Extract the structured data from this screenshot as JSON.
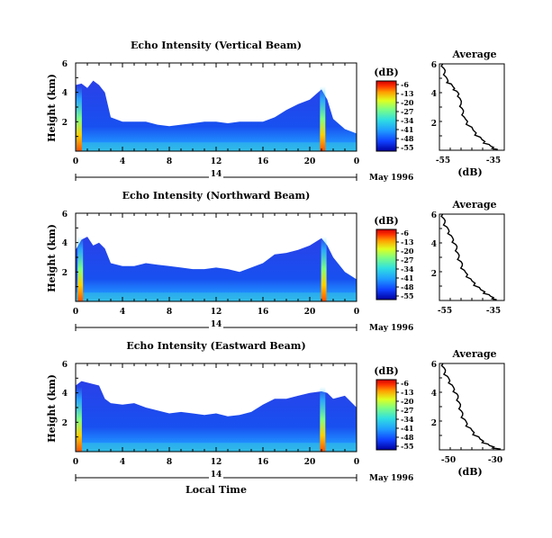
{
  "panels": [
    {
      "title": "Echo Intensity (Vertical Beam)",
      "ylabel": "Height (km)",
      "yticks": [
        "6",
        "4",
        "2"
      ],
      "xticks": [
        "0",
        "4",
        "8",
        "12",
        "16",
        "20",
        "0"
      ],
      "date_label": "14",
      "month_label": "May 1996",
      "colorbar_unit": "(dB)",
      "colorbar_ticks": [
        "-6",
        "-13",
        "-20",
        "-27",
        "-34",
        "-41",
        "-48",
        "-55"
      ],
      "profile_title": "Average",
      "profile_yticks": [
        "6",
        "4",
        "2"
      ],
      "profile_xticks": [
        "-55",
        "-35"
      ],
      "profile_xlabel": "(dB)"
    },
    {
      "title": "Echo Intensity (Northward Beam)",
      "ylabel": "Height (km)",
      "yticks": [
        "6",
        "4",
        "2"
      ],
      "xticks": [
        "0",
        "4",
        "8",
        "12",
        "16",
        "20",
        "0"
      ],
      "date_label": "14",
      "month_label": "May 1996",
      "colorbar_unit": "(dB)",
      "colorbar_ticks": [
        "-6",
        "-13",
        "-20",
        "-27",
        "-34",
        "-41",
        "-48",
        "-55"
      ],
      "profile_title": "Average",
      "profile_yticks": [
        "6",
        "4",
        "2"
      ],
      "profile_xticks": [
        "-55",
        "-35"
      ],
      "profile_xlabel": "(dB)"
    },
    {
      "title": "Echo Intensity (Eastward Beam)",
      "ylabel": "Height (km)",
      "yticks": [
        "6",
        "4",
        "2"
      ],
      "xticks": [
        "0",
        "4",
        "8",
        "12",
        "16",
        "20",
        "0"
      ],
      "date_label": "14",
      "month_label": "May 1996",
      "colorbar_unit": "(dB)",
      "colorbar_ticks": [
        "-6",
        "-13",
        "-20",
        "-27",
        "-34",
        "-41",
        "-48",
        "-55"
      ],
      "profile_title": "Average",
      "profile_yticks": [
        "6",
        "4",
        "2"
      ],
      "profile_xticks": [
        "-50",
        "-30"
      ],
      "profile_xlabel": "(dB)"
    }
  ],
  "xlabel": "Local Time",
  "chart_data": [
    {
      "type": "heatmap",
      "title": "Echo Intensity (Vertical Beam)",
      "xlabel": "Local Time",
      "ylabel": "Height (km)",
      "xlim": [
        0,
        24
      ],
      "ylim": [
        0,
        6
      ],
      "colorbar": {
        "label": "(dB)",
        "range": [
          -55,
          -6
        ],
        "ticks": [
          -6,
          -13,
          -20,
          -27,
          -34,
          -41,
          -48,
          -55
        ]
      },
      "colormap": [
        "#0000a0",
        "#1040ff",
        "#20a0ff",
        "#30e0e0",
        "#80ff80",
        "#e0ff20",
        "#ffa000",
        "#ff3000",
        "#d00000"
      ],
      "top_hours": [
        [
          0,
          4.5
        ],
        [
          0.5,
          4.6
        ],
        [
          1,
          4.3
        ],
        [
          1.5,
          4.8
        ],
        [
          2,
          4.5
        ],
        [
          2.5,
          4.0
        ],
        [
          3,
          2.3
        ],
        [
          4,
          2.0
        ],
        [
          5,
          2.0
        ],
        [
          6,
          2.0
        ],
        [
          7,
          1.8
        ],
        [
          8,
          1.7
        ],
        [
          9,
          1.8
        ],
        [
          10,
          1.9
        ],
        [
          11,
          2.0
        ],
        [
          12,
          2.0
        ],
        [
          13,
          1.9
        ],
        [
          14,
          2.0
        ],
        [
          15,
          2.0
        ],
        [
          16,
          2.0
        ],
        [
          17,
          2.3
        ],
        [
          18,
          2.8
        ],
        [
          19,
          3.2
        ],
        [
          20,
          3.5
        ],
        [
          21,
          4.2
        ],
        [
          21.5,
          3.5
        ],
        [
          22,
          2.2
        ],
        [
          23,
          1.5
        ],
        [
          24,
          1.2
        ]
      ],
      "hotspots_hours": [
        0.3,
        21.1
      ]
    },
    {
      "type": "heatmap",
      "title": "Echo Intensity (Northward Beam)",
      "xlabel": "Local Time",
      "ylabel": "Height (km)",
      "xlim": [
        0,
        24
      ],
      "ylim": [
        0,
        6
      ],
      "colorbar": {
        "label": "(dB)",
        "range": [
          -55,
          -6
        ],
        "ticks": [
          -6,
          -13,
          -20,
          -27,
          -34,
          -41,
          -48,
          -55
        ]
      },
      "colormap": [
        "#0000a0",
        "#1040ff",
        "#20a0ff",
        "#30e0e0",
        "#80ff80",
        "#e0ff20",
        "#ffa000",
        "#ff3000",
        "#d00000"
      ],
      "top_hours": [
        [
          0,
          3.5
        ],
        [
          0.5,
          4.2
        ],
        [
          1,
          4.4
        ],
        [
          1.5,
          3.8
        ],
        [
          2,
          4.0
        ],
        [
          2.5,
          3.6
        ],
        [
          3,
          2.6
        ],
        [
          4,
          2.4
        ],
        [
          5,
          2.4
        ],
        [
          6,
          2.6
        ],
        [
          7,
          2.5
        ],
        [
          8,
          2.4
        ],
        [
          9,
          2.3
        ],
        [
          10,
          2.2
        ],
        [
          11,
          2.2
        ],
        [
          12,
          2.3
        ],
        [
          13,
          2.2
        ],
        [
          14,
          2.0
        ],
        [
          15,
          2.3
        ],
        [
          16,
          2.6
        ],
        [
          17,
          3.2
        ],
        [
          18,
          3.3
        ],
        [
          19,
          3.5
        ],
        [
          20,
          3.8
        ],
        [
          21,
          4.3
        ],
        [
          21.5,
          3.8
        ],
        [
          22,
          3.0
        ],
        [
          23,
          2.0
        ],
        [
          24,
          1.5
        ]
      ],
      "hotspots_hours": [
        0.4,
        21.2
      ]
    },
    {
      "type": "heatmap",
      "title": "Echo Intensity (Eastward Beam)",
      "xlabel": "Local Time",
      "ylabel": "Height (km)",
      "xlim": [
        0,
        24
      ],
      "ylim": [
        0,
        6
      ],
      "colorbar": {
        "label": "(dB)",
        "range": [
          -55,
          -6
        ],
        "ticks": [
          -6,
          -13,
          -20,
          -27,
          -34,
          -41,
          -48,
          -55
        ]
      },
      "colormap": [
        "#0000a0",
        "#1040ff",
        "#20a0ff",
        "#30e0e0",
        "#80ff80",
        "#e0ff20",
        "#ffa000",
        "#ff3000",
        "#d00000"
      ],
      "top_hours": [
        [
          0,
          4.5
        ],
        [
          0.5,
          4.8
        ],
        [
          1,
          4.7
        ],
        [
          1.5,
          4.6
        ],
        [
          2,
          4.5
        ],
        [
          2.5,
          3.6
        ],
        [
          3,
          3.3
        ],
        [
          4,
          3.2
        ],
        [
          5,
          3.3
        ],
        [
          6,
          3.0
        ],
        [
          7,
          2.8
        ],
        [
          8,
          2.6
        ],
        [
          9,
          2.7
        ],
        [
          10,
          2.6
        ],
        [
          11,
          2.5
        ],
        [
          12,
          2.6
        ],
        [
          13,
          2.4
        ],
        [
          14,
          2.5
        ],
        [
          15,
          2.7
        ],
        [
          16,
          3.2
        ],
        [
          17,
          3.6
        ],
        [
          18,
          3.6
        ],
        [
          19,
          3.8
        ],
        [
          20,
          4.0
        ],
        [
          21,
          4.1
        ],
        [
          21.5,
          4.0
        ],
        [
          22,
          3.6
        ],
        [
          23,
          3.8
        ],
        [
          24,
          3.0
        ]
      ],
      "hotspots_hours": [
        0.3,
        21.1
      ]
    },
    {
      "type": "line",
      "title": "Average",
      "xlabel": "(dB)",
      "xlim": [
        -60,
        -30
      ],
      "ylim": [
        0,
        6
      ],
      "x": [
        -58.5,
        -58,
        -57.5,
        -57,
        -56,
        -54.5,
        -53,
        -52,
        -51,
        -50.5,
        -50,
        -49.5,
        -49,
        -48.5,
        -47,
        -45,
        -43,
        -41,
        -39,
        -37,
        -35,
        -33
      ],
      "y": [
        6.0,
        5.7,
        5.4,
        5.1,
        4.8,
        4.6,
        4.3,
        4.1,
        3.9,
        3.6,
        3.2,
        2.9,
        2.6,
        2.3,
        2.0,
        1.6,
        1.2,
        0.9,
        0.6,
        0.4,
        0.2,
        0.05
      ]
    },
    {
      "type": "line",
      "title": "Average",
      "xlabel": "(dB)",
      "xlim": [
        -60,
        -30
      ],
      "ylim": [
        0,
        6
      ],
      "x": [
        -58.5,
        -58,
        -57.5,
        -56.5,
        -55.5,
        -54.5,
        -53.5,
        -52.5,
        -52,
        -51.5,
        -51,
        -50,
        -49.5,
        -48.5,
        -47,
        -45.5,
        -43.5,
        -41.5,
        -39,
        -37,
        -35,
        -33.5
      ],
      "y": [
        6.0,
        5.7,
        5.4,
        5.1,
        4.8,
        4.5,
        4.2,
        3.9,
        3.6,
        3.3,
        3.0,
        2.7,
        2.4,
        2.1,
        1.8,
        1.5,
        1.2,
        0.9,
        0.6,
        0.4,
        0.2,
        0.05
      ]
    },
    {
      "type": "line",
      "title": "Average",
      "xlabel": "(dB)",
      "xlim": [
        -55,
        -27
      ],
      "ylim": [
        0,
        6
      ],
      "x": [
        -53.5,
        -53,
        -52.5,
        -51.5,
        -50.5,
        -49.5,
        -48.5,
        -47.5,
        -47,
        -46.5,
        -46,
        -45.5,
        -45,
        -44,
        -43,
        -41.5,
        -40,
        -38,
        -36,
        -34,
        -31.5,
        -28.5
      ],
      "y": [
        6.0,
        5.7,
        5.4,
        5.1,
        4.8,
        4.5,
        4.2,
        3.9,
        3.6,
        3.3,
        3.0,
        2.7,
        2.4,
        2.1,
        1.8,
        1.5,
        1.2,
        0.9,
        0.6,
        0.4,
        0.2,
        0.05
      ]
    }
  ]
}
